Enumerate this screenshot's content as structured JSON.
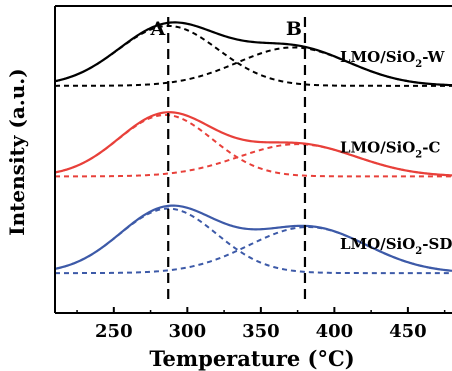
{
  "chart_data": {
    "type": "line",
    "title": "",
    "xlabel": "Temperature (°C)",
    "ylabel": "Intensity (a.u.)",
    "xlim": [
      210,
      480
    ],
    "xticks": [
      250,
      300,
      350,
      400,
      450
    ],
    "ylim": [
      0,
      10
    ],
    "y_ticks_shown": false,
    "grid": false,
    "legend": "none",
    "markers": [
      {
        "label": "A",
        "x": 287
      },
      {
        "label": "B",
        "x": 380
      }
    ],
    "series": [
      {
        "name": "LMO/SiO2-W",
        "color": "#000000",
        "baseline": 7.4,
        "peaks": [
          {
            "center": 287,
            "width": 34,
            "height": 1.95
          },
          {
            "center": 372,
            "width": 38,
            "height": 1.25
          }
        ],
        "label_main": "LMO/SiO",
        "label_sub": "2",
        "label_suffix": "-W"
      },
      {
        "name": "LMO/SiO2-C",
        "color": "#e8403a",
        "baseline": 4.45,
        "peaks": [
          {
            "center": 285,
            "width": 32,
            "height": 2.0
          },
          {
            "center": 375,
            "width": 40,
            "height": 1.05
          }
        ],
        "label_main": "LMO/SiO",
        "label_sub": "2",
        "label_suffix": "-C"
      },
      {
        "name": "LMO/SiO2-SD",
        "color": "#3d5aa8",
        "baseline": 1.3,
        "peaks": [
          {
            "center": 287,
            "width": 33,
            "height": 2.1
          },
          {
            "center": 382,
            "width": 40,
            "height": 1.5
          }
        ],
        "label_main": "LMO/SiO",
        "label_sub": "2",
        "label_suffix": "-SD"
      }
    ]
  }
}
